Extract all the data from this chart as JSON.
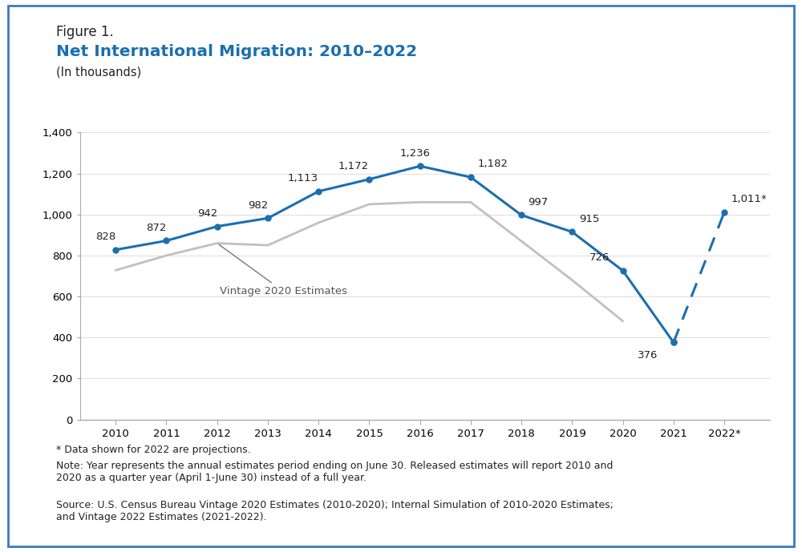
{
  "figure_label": "Figure 1.",
  "title": "Net International Migration: 2010–2022",
  "subtitle": "(In thousands)",
  "title_color": "#1a6faf",
  "figure_label_color": "#222222",
  "years": [
    2010,
    2011,
    2012,
    2013,
    2014,
    2015,
    2016,
    2017,
    2018,
    2019,
    2020,
    2021,
    2022
  ],
  "main_values": [
    828,
    872,
    942,
    982,
    1113,
    1172,
    1236,
    1182,
    997,
    915,
    726,
    376,
    1011
  ],
  "vintage2020_years": [
    2010,
    2011,
    2012,
    2013,
    2014,
    2015,
    2016,
    2017,
    2018,
    2019,
    2020
  ],
  "vintage2020_values": [
    728,
    800,
    860,
    850,
    960,
    1050,
    1060,
    1060,
    870,
    680,
    480
  ],
  "main_line_color": "#1a6faf",
  "vintage_line_color": "#c0c0c0",
  "x_labels": [
    "2010",
    "2011",
    "2012",
    "2013",
    "2014",
    "2015",
    "2016",
    "2017",
    "2018",
    "2019",
    "2020",
    "2021",
    "2022*"
  ],
  "ylim": [
    0,
    1400
  ],
  "yticks": [
    0,
    200,
    400,
    600,
    800,
    1000,
    1200,
    1400
  ],
  "ytick_labels": [
    "0",
    "200",
    "400",
    "600",
    "800",
    "1,000",
    "1,200",
    "1,400"
  ],
  "vintage_label": "Vintage 2020 Estimates",
  "label_map_years": [
    2010,
    2011,
    2012,
    2013,
    2014,
    2015,
    2016,
    2017,
    2018,
    2019,
    2020,
    2021,
    2022
  ],
  "label_map_texts": [
    "828",
    "872",
    "942",
    "982",
    "1,113",
    "1,172",
    "1,236",
    "1,182",
    "997",
    "915",
    "726",
    "376",
    "1,011*"
  ],
  "footnote1": "* Data shown for 2022 are projections.",
  "footnote2": "Note: Year represents the annual estimates period ending on June 30. Released estimates will report 2010 and\n2020 as a quarter year (April 1-June 30) instead of a full year.",
  "footnote3": "Source: U.S. Census Bureau Vintage 2020 Estimates (2010-2020); Internal Simulation of 2010-2020 Estimates;\nand Vintage 2022 Estimates (2021-2022).",
  "bg_color": "#ffffff",
  "border_color": "#3a7abf"
}
